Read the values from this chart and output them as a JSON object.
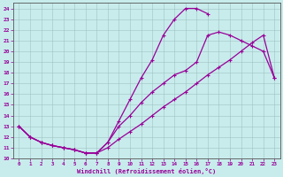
{
  "xlabel": "Windchill (Refroidissement éolien,°C)",
  "background_color": "#c8ecec",
  "line_color": "#990099",
  "xlim": [
    -0.5,
    23.5
  ],
  "ylim": [
    10,
    24.5
  ],
  "xticks": [
    0,
    1,
    2,
    3,
    4,
    5,
    6,
    7,
    8,
    9,
    10,
    11,
    12,
    13,
    14,
    15,
    16,
    17,
    18,
    19,
    20,
    21,
    22,
    23
  ],
  "yticks": [
    10,
    11,
    12,
    13,
    14,
    15,
    16,
    17,
    18,
    19,
    20,
    21,
    22,
    23,
    24
  ],
  "upper_x": [
    0,
    1,
    2,
    3,
    4,
    5,
    6,
    7,
    8,
    9,
    10,
    11,
    12,
    13,
    14,
    15,
    16,
    17
  ],
  "upper_y": [
    13,
    12,
    11.5,
    11.2,
    11.0,
    10.8,
    10.5,
    10.5,
    11.5,
    13.5,
    15.5,
    17.5,
    19.2,
    21.5,
    23.0,
    24.0,
    24.0,
    23.5
  ],
  "mid_x": [
    0,
    1,
    2,
    3,
    4,
    5,
    6,
    7,
    8,
    9,
    10,
    11,
    12,
    13,
    14,
    15,
    16,
    17,
    18,
    19,
    20,
    21,
    22,
    23
  ],
  "mid_y": [
    13,
    12,
    11.5,
    11.2,
    11.0,
    10.8,
    10.5,
    10.5,
    11.5,
    13.0,
    14.0,
    15.2,
    16.2,
    17.0,
    17.8,
    18.2,
    19.0,
    21.5,
    21.8,
    21.5,
    21.0,
    20.5,
    20.0,
    17.5
  ],
  "diag_x": [
    0,
    1,
    2,
    3,
    4,
    5,
    6,
    7,
    8,
    9,
    10,
    11,
    12,
    13,
    14,
    15,
    16,
    17,
    18,
    19,
    20,
    21,
    22,
    23
  ],
  "diag_y": [
    13,
    12,
    11.5,
    11.2,
    11.0,
    10.8,
    10.5,
    10.5,
    11.0,
    11.8,
    12.5,
    13.2,
    14.0,
    14.8,
    15.5,
    16.2,
    17.0,
    17.8,
    18.5,
    19.2,
    20.0,
    20.8,
    21.5,
    17.5
  ],
  "grid_color": "#9bbfbf",
  "grid_alpha": 0.9,
  "linewidth": 0.9,
  "markersize": 2.5
}
